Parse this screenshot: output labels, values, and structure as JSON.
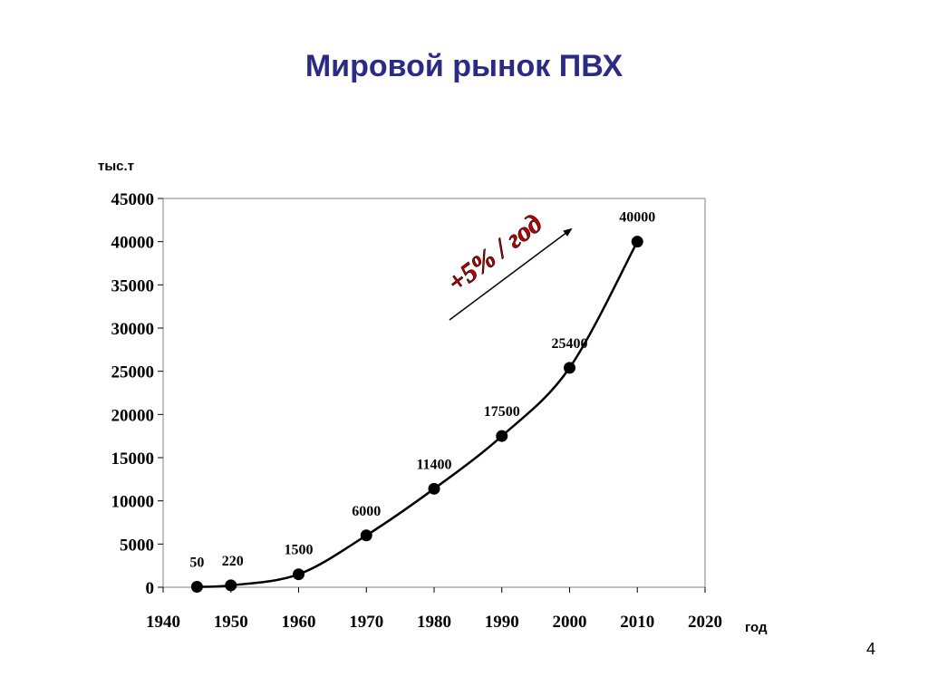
{
  "slide": {
    "title": "Мировой рынок ПВХ",
    "page_number": "4"
  },
  "chart_data": {
    "type": "line",
    "title": "Мировой рынок ПВХ",
    "xlabel": "год",
    "ylabel": "тыс.т",
    "xlim": [
      1940,
      2020
    ],
    "ylim": [
      0,
      45000
    ],
    "x_ticks": [
      "1940",
      "1950",
      "1960",
      "1970",
      "1980",
      "1990",
      "2000",
      "2010",
      "2020"
    ],
    "y_ticks": [
      "0",
      "5000",
      "10000",
      "15000",
      "20000",
      "25000",
      "30000",
      "35000",
      "40000",
      "45000"
    ],
    "grid": false,
    "series": [
      {
        "x": [
          1945,
          1950,
          1960,
          1970,
          1980,
          1990,
          2000,
          2010
        ],
        "y": [
          50,
          220,
          1500,
          6000,
          11400,
          17500,
          25400,
          40000
        ],
        "labels": [
          "50",
          "220",
          "1500",
          "6000",
          "11400",
          "17500",
          "25400",
          "40000"
        ]
      }
    ],
    "annotation": "+5% / год",
    "colors": {
      "line": "#000000",
      "annotation": "#c00000",
      "title": "#2b2b85"
    }
  }
}
